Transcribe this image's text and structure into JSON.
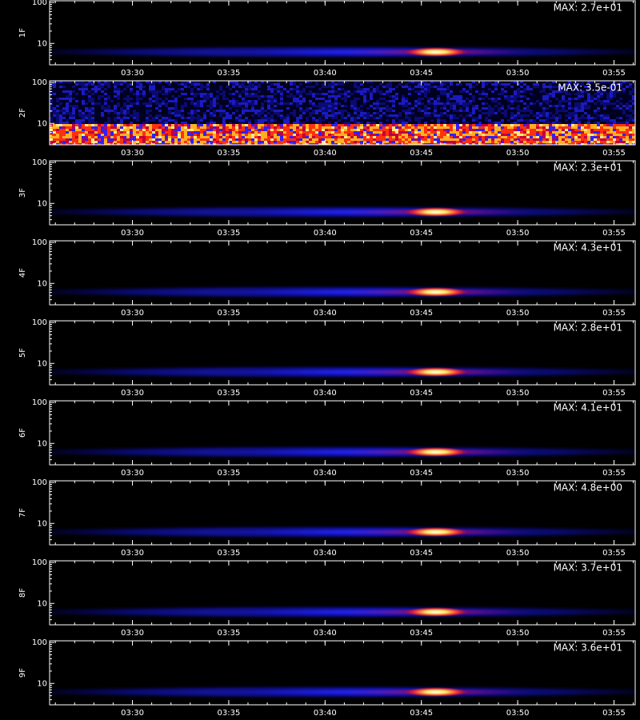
{
  "chart_data": [
    {
      "type": "spectrogram",
      "ylabel": "1F",
      "annotation": "MAX: 2.7e+01",
      "xlim": [
        205.7,
        236.1
      ],
      "xticks": [
        {
          "value": 210,
          "label": "03:30"
        },
        {
          "value": 215,
          "label": "03:35"
        },
        {
          "value": 220,
          "label": "03:40"
        },
        {
          "value": 225,
          "label": "03:45"
        },
        {
          "value": 230,
          "label": "03:50"
        },
        {
          "value": 235,
          "label": "03:55"
        }
      ],
      "ylim": [
        3,
        110
      ],
      "yticks": [
        10,
        100
      ],
      "y_scale": "log"
    },
    {
      "type": "spectrogram",
      "ylabel": "2F",
      "annotation": "MAX: 3.5e-01",
      "xlim": [
        205.7,
        236.1
      ],
      "xticks": [
        {
          "value": 210,
          "label": "03:30"
        },
        {
          "value": 215,
          "label": "03:35"
        },
        {
          "value": 220,
          "label": "03:40"
        },
        {
          "value": 225,
          "label": "03:45"
        },
        {
          "value": 230,
          "label": "03:50"
        },
        {
          "value": 235,
          "label": "03:55"
        }
      ],
      "ylim": [
        3,
        110
      ],
      "yticks": [
        10,
        100
      ],
      "y_scale": "log"
    },
    {
      "type": "spectrogram",
      "ylabel": "3F",
      "annotation": "MAX: 2.3e+01",
      "xlim": [
        205.7,
        236.1
      ],
      "xticks": [
        {
          "value": 210,
          "label": "03:30"
        },
        {
          "value": 215,
          "label": "03:35"
        },
        {
          "value": 220,
          "label": "03:40"
        },
        {
          "value": 225,
          "label": "03:45"
        },
        {
          "value": 230,
          "label": "03:50"
        },
        {
          "value": 235,
          "label": "03:55"
        }
      ],
      "ylim": [
        3,
        110
      ],
      "yticks": [
        10,
        100
      ],
      "y_scale": "log"
    },
    {
      "type": "spectrogram",
      "ylabel": "4F",
      "annotation": "MAX: 4.3e+01",
      "xlim": [
        205.7,
        236.1
      ],
      "xticks": [
        {
          "value": 210,
          "label": "03:30"
        },
        {
          "value": 215,
          "label": "03:35"
        },
        {
          "value": 220,
          "label": "03:40"
        },
        {
          "value": 225,
          "label": "03:45"
        },
        {
          "value": 230,
          "label": "03:50"
        },
        {
          "value": 235,
          "label": "03:55"
        }
      ],
      "ylim": [
        3,
        110
      ],
      "yticks": [
        10,
        100
      ],
      "y_scale": "log"
    },
    {
      "type": "spectrogram",
      "ylabel": "5F",
      "annotation": "MAX: 2.8e+01",
      "xlim": [
        205.7,
        236.1
      ],
      "xticks": [
        {
          "value": 210,
          "label": "03:30"
        },
        {
          "value": 215,
          "label": "03:35"
        },
        {
          "value": 220,
          "label": "03:40"
        },
        {
          "value": 225,
          "label": "03:45"
        },
        {
          "value": 230,
          "label": "03:50"
        },
        {
          "value": 235,
          "label": "03:55"
        }
      ],
      "ylim": [
        3,
        110
      ],
      "yticks": [
        10,
        100
      ],
      "y_scale": "log"
    },
    {
      "type": "spectrogram",
      "ylabel": "6F",
      "annotation": "MAX: 4.1e+01",
      "xlim": [
        205.7,
        236.1
      ],
      "xticks": [
        {
          "value": 210,
          "label": "03:30"
        },
        {
          "value": 215,
          "label": "03:35"
        },
        {
          "value": 220,
          "label": "03:40"
        },
        {
          "value": 225,
          "label": "03:45"
        },
        {
          "value": 230,
          "label": "03:50"
        },
        {
          "value": 235,
          "label": "03:55"
        }
      ],
      "ylim": [
        3,
        110
      ],
      "yticks": [
        10,
        100
      ],
      "y_scale": "log"
    },
    {
      "type": "spectrogram",
      "ylabel": "7F",
      "annotation": "MAX: 4.8e+00",
      "xlim": [
        205.7,
        236.1
      ],
      "xticks": [
        {
          "value": 210,
          "label": "03:30"
        },
        {
          "value": 215,
          "label": "03:35"
        },
        {
          "value": 220,
          "label": "03:40"
        },
        {
          "value": 225,
          "label": "03:45"
        },
        {
          "value": 230,
          "label": "03:50"
        },
        {
          "value": 235,
          "label": "03:55"
        }
      ],
      "ylim": [
        3,
        110
      ],
      "yticks": [
        10,
        100
      ],
      "y_scale": "log"
    },
    {
      "type": "spectrogram",
      "ylabel": "8F",
      "annotation": "MAX: 3.7e+01",
      "xlim": [
        205.7,
        236.1
      ],
      "xticks": [
        {
          "value": 210,
          "label": "03:30"
        },
        {
          "value": 215,
          "label": "03:35"
        },
        {
          "value": 220,
          "label": "03:40"
        },
        {
          "value": 225,
          "label": "03:45"
        },
        {
          "value": 230,
          "label": "03:50"
        },
        {
          "value": 235,
          "label": "03:55"
        }
      ],
      "ylim": [
        3,
        110
      ],
      "yticks": [
        10,
        100
      ],
      "y_scale": "log"
    },
    {
      "type": "spectrogram",
      "ylabel": "9F",
      "annotation": "MAX: 3.6e+01",
      "xlim": [
        205.7,
        236.1
      ],
      "xticks": [
        {
          "value": 210,
          "label": "03:30"
        },
        {
          "value": 215,
          "label": "03:35"
        },
        {
          "value": 220,
          "label": "03:40"
        },
        {
          "value": 225,
          "label": "03:45"
        },
        {
          "value": 230,
          "label": "03:50"
        },
        {
          "value": 235,
          "label": "03:55"
        }
      ],
      "ylim": [
        3,
        110
      ],
      "yticks": [
        10,
        100
      ],
      "y_scale": "log"
    }
  ]
}
